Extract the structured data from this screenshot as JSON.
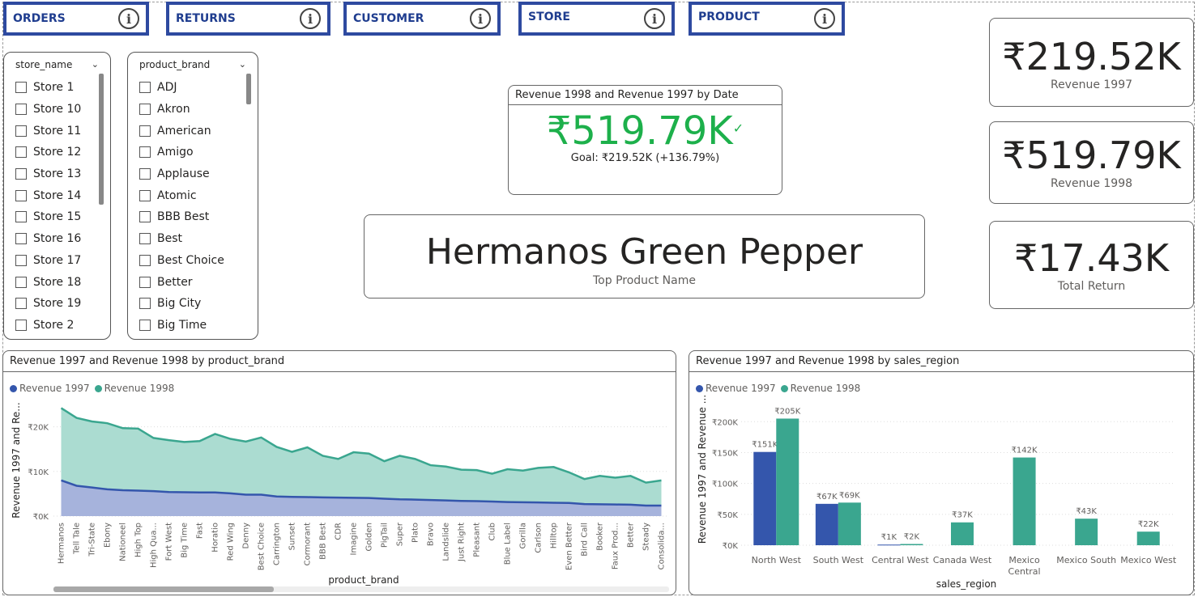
{
  "nav": [
    {
      "label": "ORDERS",
      "left": 0
    },
    {
      "label": "RETURNS"
    },
    {
      "label": "CUSTOMER"
    },
    {
      "label": "STORE"
    },
    {
      "label": "PRODUCT"
    }
  ],
  "info_glyph": "i",
  "slicers": {
    "store": {
      "header": "store_name",
      "items": [
        "Store 1",
        "Store 10",
        "Store 11",
        "Store 12",
        "Store 13",
        "Store 14",
        "Store 15",
        "Store 16",
        "Store 17",
        "Store 18",
        "Store 19",
        "Store 2"
      ]
    },
    "brand": {
      "header": "product_brand",
      "items": [
        "ADJ",
        "Akron",
        "American",
        "Amigo",
        "Applause",
        "Atomic",
        "BBB Best",
        "Best",
        "Best Choice",
        "Better",
        "Big City",
        "Big Time"
      ]
    }
  },
  "kpi": {
    "title": "Revenue 1998 and Revenue 1997 by Date",
    "value": "₹519.79K",
    "check": "✓",
    "goal": "Goal: ₹219.52K (+136.79%)",
    "color": "#1db04b"
  },
  "top_product": {
    "value": "Hermanos Green Pepper",
    "label": "Top Product Name"
  },
  "cards": [
    {
      "value": "₹219.52K",
      "label": "Revenue 1997"
    },
    {
      "value": "₹519.79K",
      "label": "Revenue 1998"
    },
    {
      "value": "₹17.43K",
      "label": "Total Return"
    }
  ],
  "colors": {
    "rev1997": "#3456ac",
    "rev1998": "#3aa68f"
  },
  "chart_data": [
    {
      "type": "area",
      "title": "Revenue 1997 and Revenue 1998 by product_brand",
      "xlabel": "product_brand",
      "ylabel": "Revenue 1997 and Re...",
      "ylim": [
        0,
        25000
      ],
      "yticks": [
        0,
        10000,
        20000
      ],
      "ytick_labels": [
        "₹0K",
        "₹10K",
        "₹20K"
      ],
      "legend": "top-left",
      "categories": [
        "Hermanos",
        "Tell Tale",
        "Tri-State",
        "Ebony",
        "Nationeel",
        "High Top",
        "High Qua...",
        "Fort West",
        "Big Time",
        "Fast",
        "Horatio",
        "Red Wing",
        "Denny",
        "Best Choice",
        "Carrington",
        "Sunset",
        "Cormorant",
        "BBB Best",
        "CDR",
        "Imagine",
        "Golden",
        "PigTail",
        "Super",
        "Plato",
        "Bravo",
        "Landslide",
        "Just Right",
        "Pleasant",
        "Club",
        "Blue Label",
        "Gorilla",
        "Carlson",
        "Hilltop",
        "Even Better",
        "Bird Call",
        "Booker",
        "Faux Prod...",
        "Better",
        "Steady",
        "Consolida..."
      ],
      "series": [
        {
          "name": "Revenue 1997",
          "values": [
            8000,
            6800,
            6400,
            6000,
            5800,
            5700,
            5600,
            5400,
            5350,
            5300,
            5300,
            5100,
            4800,
            4800,
            4400,
            4300,
            4250,
            4200,
            4150,
            4100,
            4050,
            3900,
            3750,
            3700,
            3600,
            3500,
            3400,
            3350,
            3250,
            3150,
            3100,
            3050,
            3000,
            2950,
            2700,
            2650,
            2600,
            2550,
            2350,
            2350
          ]
        },
        {
          "name": "Revenue 1998",
          "values": [
            24200,
            22000,
            21200,
            20800,
            19700,
            19600,
            17500,
            17000,
            16600,
            16800,
            18400,
            17300,
            16700,
            17600,
            15500,
            14400,
            15400,
            13500,
            12800,
            14300,
            14000,
            12300,
            13500,
            12800,
            11400,
            11100,
            10400,
            10300,
            9500,
            10500,
            10200,
            10800,
            11000,
            9800,
            8300,
            9000,
            8600,
            9000,
            7500,
            8000
          ]
        }
      ]
    },
    {
      "type": "bar",
      "title": "Revenue 1997 and Revenue 1998 by sales_region",
      "xlabel": "sales_region",
      "ylabel": "Revenue 1997 and Revenue ...",
      "ylim": [
        0,
        220000
      ],
      "yticks": [
        0,
        50000,
        100000,
        150000,
        200000
      ],
      "ytick_labels": [
        "₹0K",
        "₹50K",
        "₹100K",
        "₹150K",
        "₹200K"
      ],
      "legend": "top-left",
      "categories": [
        "North West",
        "South West",
        "Central West",
        "Canada West",
        "Mexico Central",
        "Mexico South",
        "Mexico West"
      ],
      "category_lines": [
        [
          "North West"
        ],
        [
          "South West"
        ],
        [
          "Central West"
        ],
        [
          "Canada West"
        ],
        [
          "Mexico",
          "Central"
        ],
        [
          "Mexico South"
        ],
        [
          "Mexico West"
        ]
      ],
      "series": [
        {
          "name": "Revenue 1997",
          "values": [
            151000,
            67000,
            1000,
            null,
            null,
            null,
            null
          ],
          "labels": [
            "₹151K",
            "₹67K",
            "₹1K",
            "",
            "",
            "",
            ""
          ]
        },
        {
          "name": "Revenue 1998",
          "values": [
            205000,
            69000,
            2000,
            37000,
            142000,
            43000,
            22000
          ],
          "labels": [
            "₹205K",
            "₹69K",
            "₹2K",
            "₹37K",
            "₹142K",
            "₹43K",
            "₹22K"
          ]
        }
      ]
    }
  ]
}
